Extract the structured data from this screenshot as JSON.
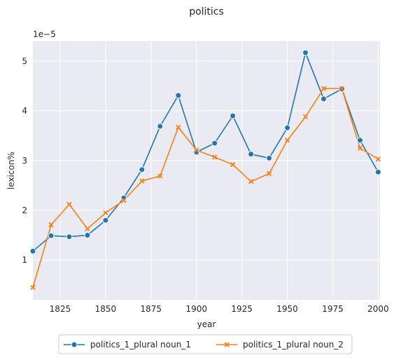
{
  "chart_data": {
    "type": "line",
    "title": "politics",
    "xlabel": "year",
    "ylabel": "lexicon%",
    "y_scale_label": "1e−5",
    "x_ticks": [
      "1825",
      "1850",
      "1875",
      "1900",
      "1925",
      "1950",
      "1975",
      "2000"
    ],
    "y_ticks": [
      "1",
      "2",
      "3",
      "4",
      "5"
    ],
    "xlim": [
      1810,
      2001
    ],
    "ylim": [
      0.2,
      5.4
    ],
    "grid": true,
    "legend_position": "bottom-center",
    "x": [
      1810,
      1820,
      1830,
      1840,
      1850,
      1860,
      1870,
      1880,
      1890,
      1900,
      1910,
      1920,
      1930,
      1940,
      1950,
      1960,
      1970,
      1980,
      1990,
      2000
    ],
    "series": [
      {
        "name": "politics_1_plural noun_1",
        "color": "#1f77b4",
        "marker": "circle",
        "values": [
          1.18,
          1.49,
          1.47,
          1.5,
          1.8,
          2.25,
          2.82,
          3.69,
          4.31,
          3.17,
          3.35,
          3.9,
          3.13,
          3.05,
          3.66,
          5.17,
          4.24,
          4.44,
          3.41,
          2.77
        ]
      },
      {
        "name": "politics_1_plural noun_2",
        "color": "#ff7f0e",
        "marker": "x",
        "values": [
          0.45,
          1.71,
          2.12,
          1.63,
          1.95,
          2.2,
          2.59,
          2.69,
          3.67,
          3.21,
          3.07,
          2.92,
          2.58,
          2.74,
          3.41,
          3.88,
          4.45,
          4.45,
          3.25,
          3.03
        ]
      }
    ]
  }
}
